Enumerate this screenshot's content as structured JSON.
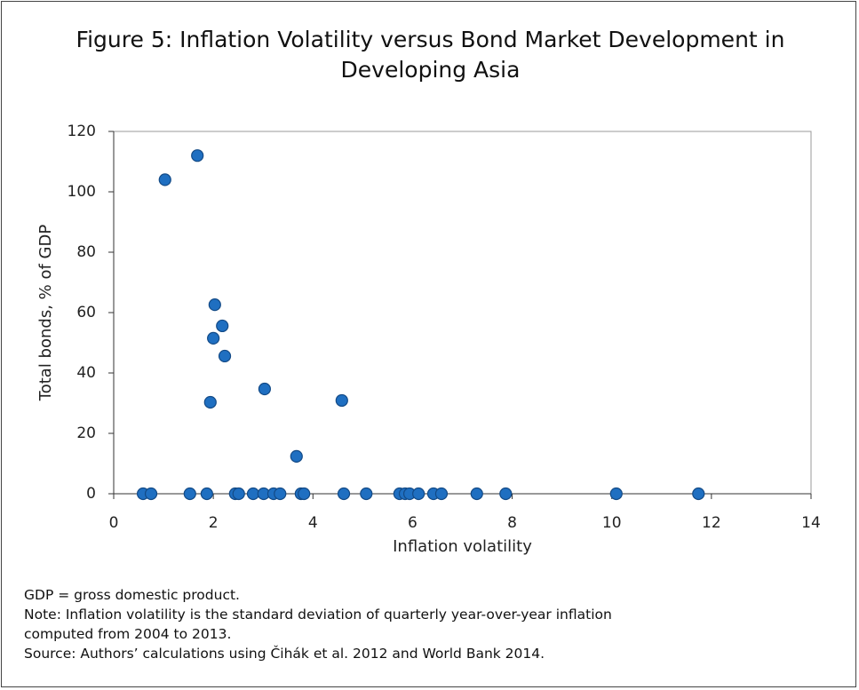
{
  "chart_data": {
    "type": "scatter",
    "title": "Figure 5: Inflation Volatility versus Bond Market Development in Developing Asia",
    "x_label": "Inflation volatility",
    "y_label": "Total bonds, % of GDP",
    "notes": [
      "GDP = gross domestic product.",
      "Note: Inflation volatility is the standard deviation of quarterly year-over-year inflation computed from 2004 to 2013.",
      "Source: Authors’ calculations using Čihák et al. 2012 and World Bank 2014."
    ],
    "color": "#1f6fc1",
    "x": [
      1.03,
      1.68,
      2.03,
      2.18,
      2.0,
      2.23,
      3.03,
      1.94,
      4.58,
      3.67,
      0.59,
      0.75,
      1.53,
      1.87,
      2.44,
      2.51,
      2.8,
      3.01,
      3.21,
      3.34,
      3.76,
      3.82,
      4.62,
      5.07,
      5.74,
      5.85,
      5.94,
      6.12,
      6.42,
      6.58,
      7.29,
      7.87,
      10.09,
      11.74
    ],
    "values": [
      104,
      112,
      62.6,
      55.6,
      51.5,
      45.6,
      34.7,
      30.3,
      30.9,
      12.4,
      0,
      0,
      0,
      0,
      0,
      0,
      0,
      0,
      0,
      0,
      0,
      0,
      0,
      0,
      0,
      0,
      0,
      0,
      0,
      0,
      0,
      0,
      0,
      0
    ],
    "xlim": [
      0,
      14
    ],
    "xticks": [
      0,
      2,
      4,
      6,
      8,
      10,
      12,
      14
    ],
    "ylim": [
      0,
      120
    ],
    "yticks": [
      0,
      20,
      40,
      60,
      80,
      100,
      120
    ],
    "grid": false
  }
}
